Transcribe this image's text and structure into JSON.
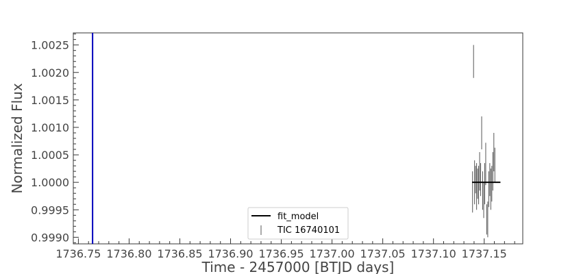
{
  "chart_data": {
    "type": "scatter",
    "title": "",
    "xlabel": "Time - 2457000 [BTJD days]",
    "ylabel": "Normalized Flux",
    "xlim": [
      1736.745,
      1737.188
    ],
    "ylim": [
      0.99888,
      1.00272
    ],
    "x_ticks": [
      1736.75,
      1736.8,
      1736.85,
      1736.9,
      1736.95,
      1737.0,
      1737.05,
      1737.1,
      1737.15
    ],
    "x_tick_labels": [
      "1736.75",
      "1736.80",
      "1736.85",
      "1736.90",
      "1736.95",
      "1737.00",
      "1737.05",
      "1737.10",
      "1737.15"
    ],
    "y_ticks": [
      0.999,
      0.9995,
      1.0,
      1.0005,
      1.001,
      1.0015,
      1.002,
      1.0025
    ],
    "y_tick_labels": [
      "0.9990",
      "0.9995",
      "1.0000",
      "1.0005",
      "1.0010",
      "1.0015",
      "1.0020",
      "1.0025"
    ],
    "grid": false,
    "legend_position": "lower-center",
    "transit_marker": {
      "x": 1736.764,
      "color": "#0000bb"
    },
    "series": [
      {
        "name": "fit_model",
        "kind": "line",
        "color": "#000000",
        "x": [
          1737.138,
          1737.166
        ],
        "y": [
          1.0,
          1.0
        ]
      },
      {
        "name": "TIC 16740101",
        "kind": "errorbar",
        "color": "#555555",
        "points": [
          {
            "x": 1737.1385,
            "y_low": 0.99945,
            "y_high": 1.0002
          },
          {
            "x": 1737.1395,
            "y_low": 1.0019,
            "y_high": 1.0025
          },
          {
            "x": 1737.1405,
            "y_low": 0.9996,
            "y_high": 1.0004
          },
          {
            "x": 1737.1415,
            "y_low": 0.9998,
            "y_high": 1.0003
          },
          {
            "x": 1737.1425,
            "y_low": 0.9995,
            "y_high": 1.00035
          },
          {
            "x": 1737.1435,
            "y_low": 0.9997,
            "y_high": 1.00025
          },
          {
            "x": 1737.1445,
            "y_low": 0.9996,
            "y_high": 1.0003
          },
          {
            "x": 1737.1455,
            "y_low": 0.99985,
            "y_high": 1.00055
          },
          {
            "x": 1737.1465,
            "y_low": 0.99975,
            "y_high": 1.00035
          },
          {
            "x": 1737.1475,
            "y_low": 1.0006,
            "y_high": 1.0012
          },
          {
            "x": 1737.1485,
            "y_low": 0.9995,
            "y_high": 1.0002
          },
          {
            "x": 1737.1495,
            "y_low": 0.99935,
            "y_high": 1.0
          },
          {
            "x": 1737.1505,
            "y_low": 0.9996,
            "y_high": 1.00035
          },
          {
            "x": 1737.1515,
            "y_low": 0.99995,
            "y_high": 1.00072
          },
          {
            "x": 1737.1525,
            "y_low": 0.99905,
            "y_high": 0.9996
          },
          {
            "x": 1737.1535,
            "y_low": 0.999,
            "y_high": 0.99965
          },
          {
            "x": 1737.1545,
            "y_low": 0.99955,
            "y_high": 1.0002
          },
          {
            "x": 1737.1555,
            "y_low": 0.99975,
            "y_high": 1.00035
          },
          {
            "x": 1737.1565,
            "y_low": 0.9995,
            "y_high": 1.00025
          },
          {
            "x": 1737.1575,
            "y_low": 0.99965,
            "y_high": 1.0003
          },
          {
            "x": 1737.1585,
            "y_low": 0.99985,
            "y_high": 1.00055
          },
          {
            "x": 1737.1595,
            "y_low": 1.0002,
            "y_high": 1.0009
          },
          {
            "x": 1737.1605,
            "y_low": 1.0,
            "y_high": 1.00063
          }
        ]
      }
    ]
  }
}
